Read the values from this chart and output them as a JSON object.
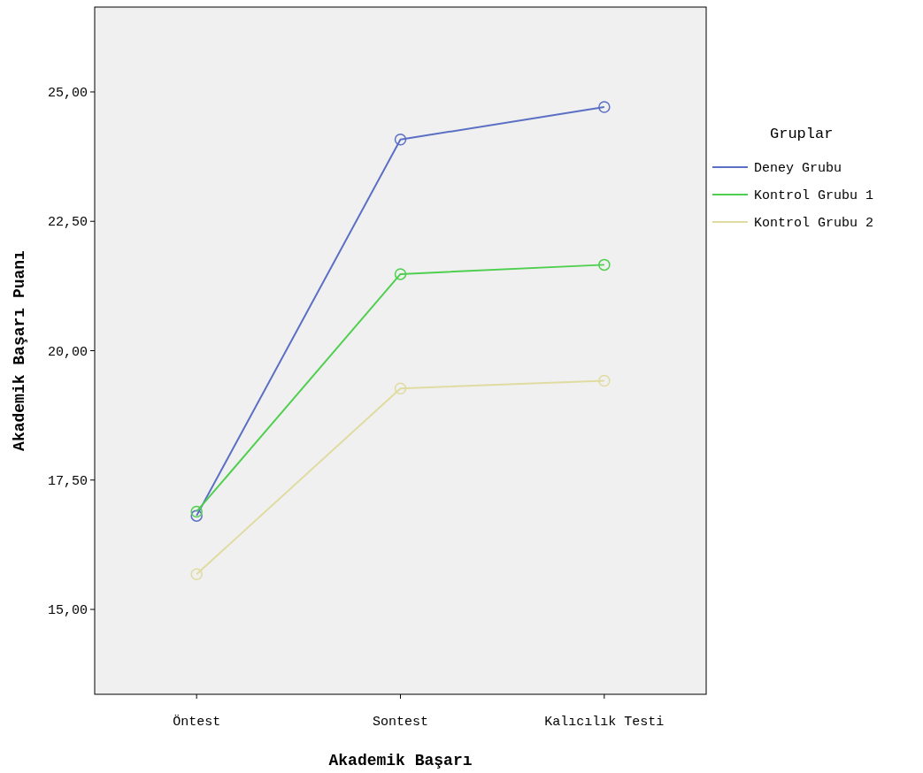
{
  "chart_data": {
    "type": "line",
    "xlabel": "Akademik Başarı",
    "ylabel": "Akademik Başarı Puanı",
    "legend_title": "Gruplar",
    "legend": "right",
    "marker": "circle",
    "categories": [
      "Öntest",
      "Sontest",
      "Kalıcılık Testi"
    ],
    "ylim": [
      13.36,
      26.64
    ],
    "yticks": [
      {
        "value": 15,
        "label": "15,00"
      },
      {
        "value": 17.5,
        "label": "17,50"
      },
      {
        "value": 20,
        "label": "20,00"
      },
      {
        "value": 22.5,
        "label": "22,50"
      },
      {
        "value": 25,
        "label": "25,00"
      }
    ],
    "series": [
      {
        "name": "Deney Grubu",
        "color": "#5b6fc4",
        "values": [
          16.81,
          24.08,
          24.71
        ]
      },
      {
        "name": "Kontrol Grubu 1",
        "color": "#4fcf4f",
        "values": [
          16.89,
          21.48,
          21.66
        ]
      },
      {
        "name": "Kontrol Grubu 2",
        "color": "#e0dba0",
        "values": [
          15.68,
          19.27,
          19.42
        ]
      }
    ]
  }
}
